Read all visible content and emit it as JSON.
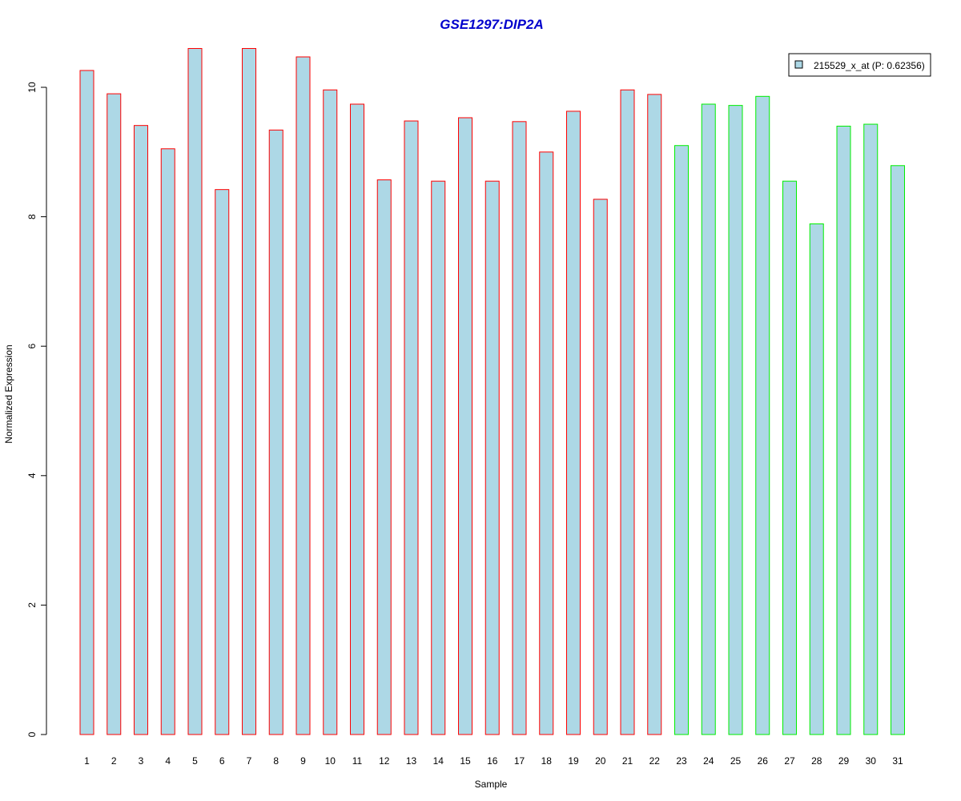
{
  "chart_data": {
    "type": "bar",
    "title": "GSE1297:DIP2A",
    "xlabel": "Sample",
    "ylabel": "Normalized Expression",
    "ylim": [
      0,
      10.5
    ],
    "yticks": [
      "0",
      "2",
      "4",
      "6",
      "8",
      "10"
    ],
    "categories": [
      "1",
      "2",
      "3",
      "4",
      "5",
      "6",
      "7",
      "8",
      "9",
      "10",
      "11",
      "12",
      "13",
      "14",
      "15",
      "16",
      "17",
      "18",
      "19",
      "20",
      "21",
      "22",
      "23",
      "24",
      "25",
      "26",
      "27",
      "28",
      "29",
      "30",
      "31"
    ],
    "series": [
      {
        "name": "215529_x_at (P: 0.62356)",
        "fill": "#add8e6",
        "values": [
          10.26,
          9.9,
          9.41,
          9.05,
          10.6,
          8.42,
          10.6,
          9.34,
          10.47,
          9.96,
          9.74,
          8.57,
          9.48,
          8.55,
          9.53,
          8.55,
          9.47,
          9.0,
          9.63,
          8.27,
          9.96,
          9.89,
          9.1,
          9.74,
          9.72,
          9.86,
          8.55,
          7.89,
          9.4,
          9.43,
          8.79
        ]
      }
    ],
    "groups": [
      {
        "from": 1,
        "to": 22,
        "stroke": "#ff0000"
      },
      {
        "from": 23,
        "to": 31,
        "stroke": "#00ee00"
      }
    ],
    "title_color": "#0000cc",
    "grid": false,
    "legend_position": "top-right"
  }
}
